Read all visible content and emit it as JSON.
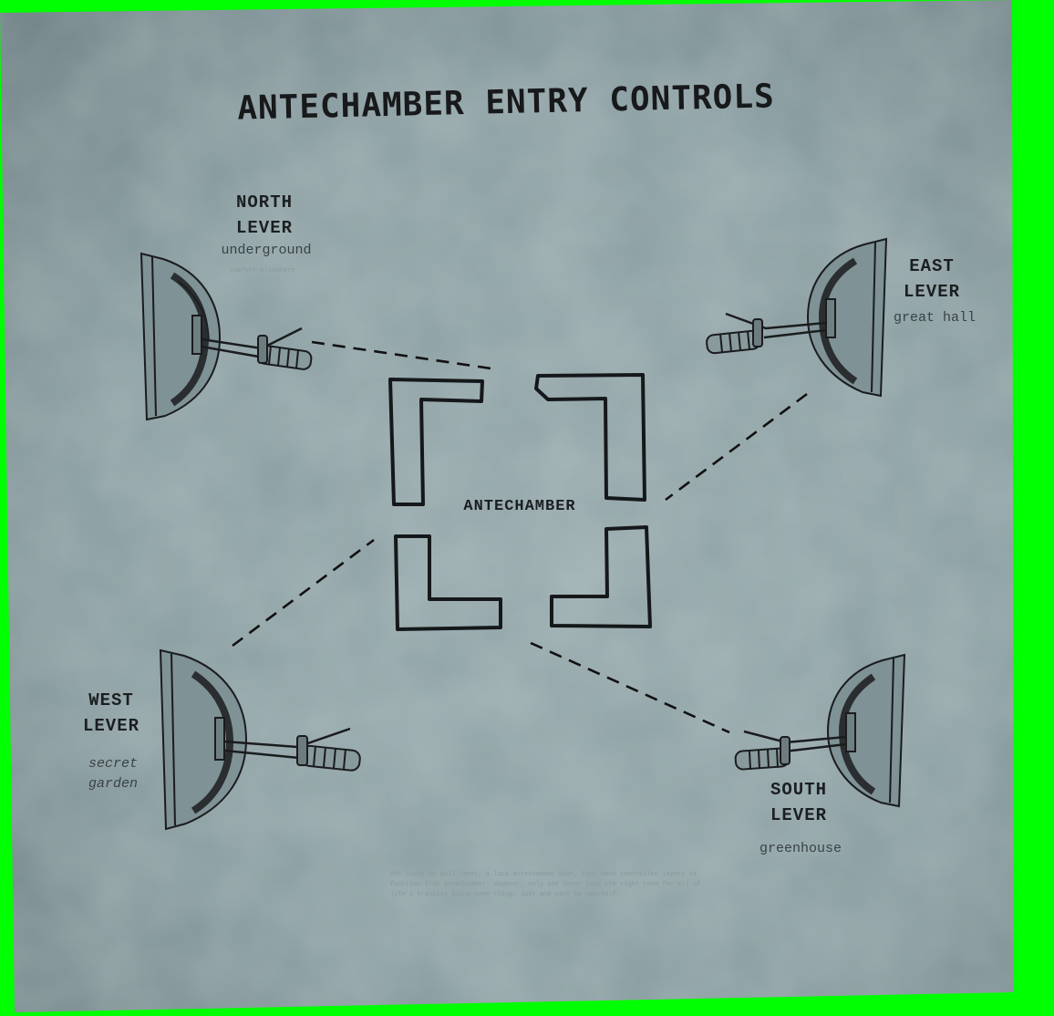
{
  "title": "ANTECHAMBER ENTRY CONTROLS",
  "room": {
    "label": "ANTECHAMBER"
  },
  "levers": {
    "north": {
      "line1": "NORTH",
      "line2": "LEVER",
      "destination": "underground",
      "note": "comfort elsewhere"
    },
    "east": {
      "line1": "EAST",
      "line2": "LEVER",
      "destination": "great hall"
    },
    "west": {
      "line1": "WEST",
      "line2": "LEVER",
      "destination_line1": "secret",
      "destination_line2": "garden"
    },
    "south": {
      "line1": "SOUTH",
      "line2": "LEVER",
      "destination": "greenhouse"
    }
  },
  "footnote": {
    "line1": "Get lucky to pull lever, a lock antechamber door, four hand controller layers to",
    "line2": "function from antechamber. However, only one lever lead the right room for all of",
    "line3": "life's transits doing some thing. Just and each be yourself."
  },
  "colors": {
    "paper": "#8a9ea2",
    "ink": "#1b1f21",
    "background": "#00ff00"
  }
}
